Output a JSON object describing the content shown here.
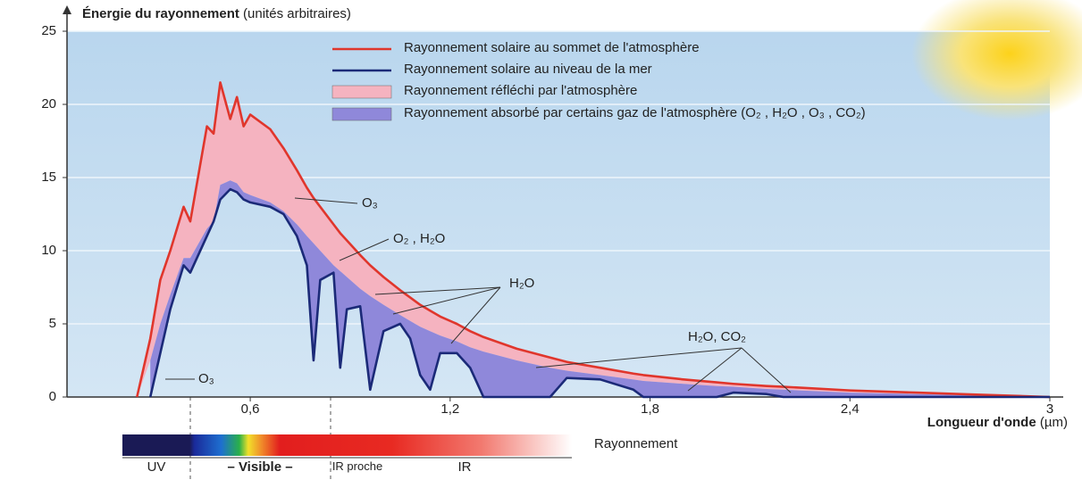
{
  "chart_data": {
    "type": "area",
    "ylabel": "Énergie du rayonnement",
    "ylabel_note": "(unités arbitraires)",
    "xlabel": "Longueur d'onde",
    "xlabel_unit": "(µm)",
    "x": [
      0.26,
      0.3,
      0.33,
      0.36,
      0.4,
      0.42,
      0.47,
      0.49,
      0.51,
      0.54,
      0.56,
      0.58,
      0.6,
      0.66,
      0.7,
      0.74,
      0.77,
      0.79,
      0.81,
      0.85,
      0.87,
      0.89,
      0.93,
      0.96,
      1.0,
      1.05,
      1.08,
      1.11,
      1.14,
      1.17,
      1.22,
      1.26,
      1.3,
      1.4,
      1.5,
      1.55,
      1.65,
      1.75,
      1.78,
      1.9,
      2.0,
      2.05,
      2.15,
      2.2,
      2.4,
      2.6,
      2.8,
      3.0
    ],
    "series": [
      {
        "name": "Rayonnement solaire au sommet de l'atmosphère",
        "color": "#e0362c",
        "style": "line",
        "values": [
          0,
          4,
          8,
          10,
          13,
          12,
          18.5,
          18,
          21.5,
          19,
          20.5,
          18.5,
          19.3,
          18.3,
          17,
          15.5,
          14.3,
          13.6,
          13,
          11.8,
          11.2,
          10.7,
          9.7,
          9,
          8.2,
          7.3,
          6.8,
          6.3,
          5.9,
          5.5,
          5,
          4.5,
          4.1,
          3.3,
          2.7,
          2.4,
          2,
          1.6,
          1.5,
          1.2,
          1,
          0.9,
          0.75,
          0.7,
          0.45,
          0.3,
          0.15,
          0
        ]
      },
      {
        "name": "Rayonnement solaire au niveau de la mer",
        "color": "#1b2a78",
        "style": "line",
        "values": [
          null,
          0,
          3,
          6,
          9,
          8.5,
          11,
          12,
          13.5,
          14.2,
          14,
          13.5,
          13.3,
          13,
          12.5,
          11,
          9,
          2.5,
          8,
          8.5,
          2,
          6,
          6.2,
          0.5,
          4.5,
          5,
          4,
          1.5,
          0.5,
          3,
          3,
          2,
          0,
          0,
          0,
          1.3,
          1.2,
          0.5,
          0,
          0,
          0,
          0.3,
          0.2,
          0,
          0,
          0,
          0,
          0
        ]
      },
      {
        "name": "Rayonnement réfléchi par l'atmosphère",
        "color": "#f5b3c0",
        "style": "band",
        "values": [
          0,
          2.5,
          5,
          7,
          9.5,
          9.5,
          11.5,
          12,
          14.5,
          14.8,
          14.6,
          14,
          13.8,
          13.3,
          12.7,
          11.8,
          11,
          10.5,
          10,
          9,
          8.6,
          8.2,
          7.4,
          6.9,
          6.3,
          5.6,
          5.2,
          4.8,
          4.5,
          4.2,
          3.8,
          3.4,
          3.1,
          2.5,
          2,
          1.8,
          1.5,
          1.2,
          1.1,
          0.9,
          0.75,
          0.7,
          0.55,
          0.5,
          0.3,
          0.2,
          0.1,
          0
        ]
      },
      {
        "name": "Rayonnement absorbé par certains gaz de l'atmosphère (O₂ , H₂O , O₃ , CO₂)",
        "color": "#8f88da",
        "style": "band"
      }
    ],
    "xlim": [
      0.05,
      3
    ],
    "ylim": [
      0,
      25
    ],
    "xticks": [
      {
        "value": 0.6,
        "label": "0,6"
      },
      {
        "value": 1.2,
        "label": "1,2"
      },
      {
        "value": 1.8,
        "label": "1,8"
      },
      {
        "value": 2.4,
        "label": "2,4"
      },
      3
    ],
    "yticks": [
      0,
      5,
      10,
      15,
      20,
      25
    ],
    "grid": true,
    "annotations": [
      "O₃",
      "O₂ , H₂O",
      "H₂O",
      "H₂O, CO₂",
      "O₃"
    ],
    "spectrum_bar": {
      "label": "Rayonnement",
      "bands": [
        "UV",
        "– Visible –",
        "IR proche",
        "IR"
      ]
    }
  }
}
